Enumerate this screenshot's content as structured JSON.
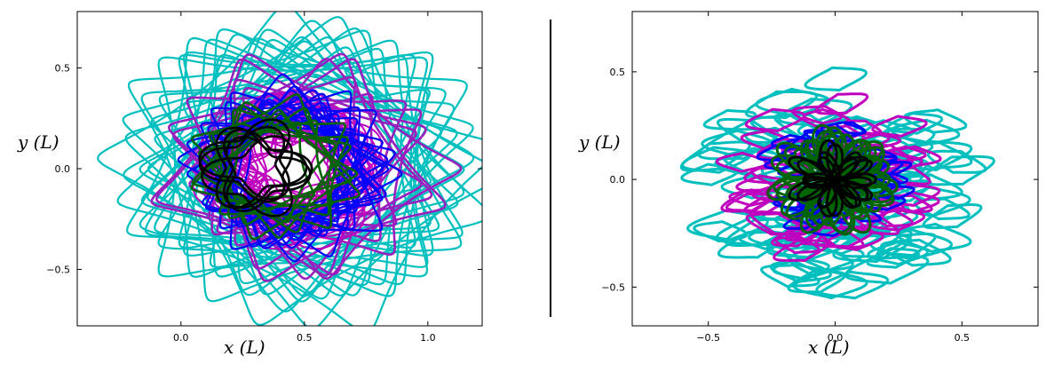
{
  "figure": {
    "separator_color": "#000000",
    "series_colors": [
      "#00bfbf",
      "#9a1fbf",
      "#bf00bf",
      "#0000ff",
      "#006400",
      "#000000"
    ]
  },
  "chart_data": [
    {
      "type": "line",
      "panel": "left",
      "title": "",
      "xlabel": "x (L)",
      "ylabel": "y (L)",
      "xlim": [
        -0.42,
        1.22
      ],
      "ylim": [
        -0.78,
        0.78
      ],
      "xticks": [
        0.0,
        0.5,
        1.0
      ],
      "xtick_labels": [
        "0.0",
        "0.5",
        "1.0"
      ],
      "yticks": [
        -0.5,
        0.0,
        0.5
      ],
      "ytick_labels": [
        "−0.5",
        "0.0",
        "0.5"
      ],
      "grid": false,
      "legend": "none",
      "series": [
        {
          "color": "#00bfbf",
          "shape": "square-star",
          "center": [
            0.5,
            0.0
          ],
          "radius": 0.5,
          "count": 24,
          "width": 2.2
        },
        {
          "color": "#9a1fbf",
          "shape": "square-star",
          "center": [
            0.5,
            0.0
          ],
          "radius": 0.38,
          "count": 10,
          "width": 2.6
        },
        {
          "color": "#bf00bf",
          "shape": "lens",
          "center": [
            0.45,
            0.0
          ],
          "radius": 0.32,
          "count": 30,
          "width": 2.0
        },
        {
          "color": "#0000ff",
          "shape": "square-star",
          "center": [
            0.45,
            0.0
          ],
          "radius": 0.28,
          "count": 20,
          "width": 2.2
        },
        {
          "color": "#006400",
          "shape": "square-star",
          "center": [
            0.38,
            0.0
          ],
          "radius": 0.22,
          "count": 10,
          "width": 2.6
        },
        {
          "color": "#000000",
          "shape": "lens",
          "center": [
            0.3,
            0.0
          ],
          "radius": 0.2,
          "count": 6,
          "width": 2.6
        }
      ]
    },
    {
      "type": "line",
      "panel": "right",
      "title": "",
      "xlabel": "x (L)",
      "ylabel": "y (L)",
      "xlim": [
        -0.8,
        0.8
      ],
      "ylim": [
        -0.68,
        0.78
      ],
      "xticks": [
        -0.5,
        0.0,
        0.5
      ],
      "xtick_labels": [
        "−0.5",
        "0.0",
        "0.5"
      ],
      "yticks": [
        -0.5,
        0.0,
        0.5
      ],
      "ytick_labels": [
        "−0.5",
        "0.0",
        "0.5"
      ],
      "grid": false,
      "legend": "none",
      "series": [
        {
          "color": "#00bfbf",
          "shape": "loop-hex",
          "center": [
            0.0,
            0.0
          ],
          "radius": 0.56,
          "count": 90,
          "width": 3.0
        },
        {
          "color": "#bf00bf",
          "shape": "loop-hex",
          "center": [
            0.0,
            0.0
          ],
          "radius": 0.4,
          "count": 60,
          "width": 3.0
        },
        {
          "color": "#0000ff",
          "shape": "loop-hex",
          "center": [
            0.0,
            0.0
          ],
          "radius": 0.28,
          "count": 45,
          "width": 2.8
        },
        {
          "color": "#006400",
          "shape": "trefoil",
          "center": [
            0.0,
            0.0
          ],
          "radius": 0.2,
          "count": 9,
          "width": 3.0
        },
        {
          "color": "#000000",
          "shape": "trefoil",
          "center": [
            0.0,
            0.0
          ],
          "radius": 0.14,
          "count": 4,
          "width": 2.8
        }
      ]
    }
  ]
}
